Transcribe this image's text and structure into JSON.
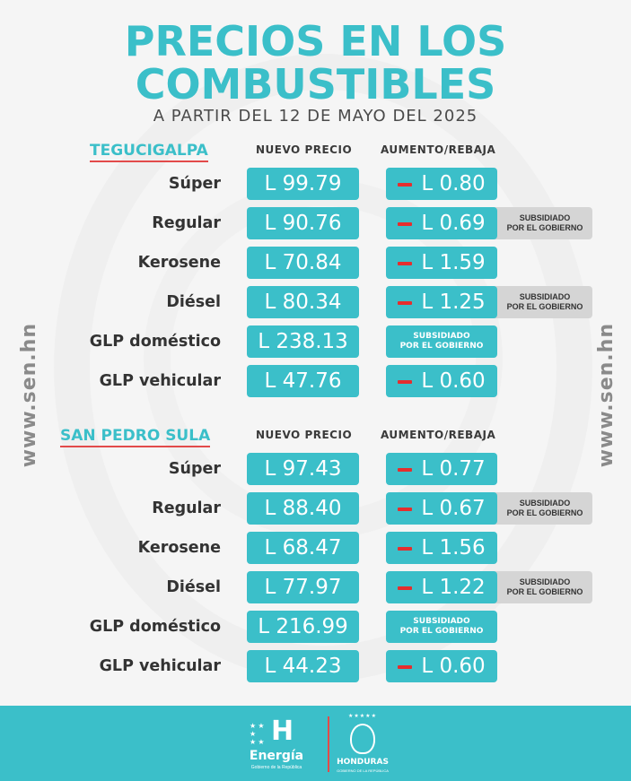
{
  "header": {
    "title_line1": "PRECIOS EN LOS",
    "title_line2": "COMBUSTIBLES",
    "subtitle": "A PARTIR DEL 12 DE MAYO DEL 2025"
  },
  "columns": {
    "price": "NUEVO PRECIO",
    "change": "AUMENTO/REBAJA"
  },
  "side_text": "www.sen.hn",
  "subsidy_label_line1": "SUBSIDIADO",
  "subsidy_label_line2": "POR EL GOBIERNO",
  "colors": {
    "accent": "#3bbfc9",
    "decrease": "#e52e2e",
    "tag_bg": "#d5d5d5"
  },
  "cities": [
    {
      "name": "TEGUCIGALPA",
      "rows": [
        {
          "fuel": "Súper",
          "price": "L 99.79",
          "change": "L 0.80",
          "subsidized": false
        },
        {
          "fuel": "Regular",
          "price": "L 90.76",
          "change": "L 0.69",
          "subsidized": true
        },
        {
          "fuel": "Kerosene",
          "price": "L 70.84",
          "change": "L 1.59",
          "subsidized": false
        },
        {
          "fuel": "Diésel",
          "price": "L 80.34",
          "change": "L 1.25",
          "subsidized": true
        },
        {
          "fuel": "GLP doméstico",
          "price": "L 238.13",
          "change": "",
          "subsidized": false
        },
        {
          "fuel": "GLP vehicular",
          "price": "L 47.76",
          "change": "L 0.60",
          "subsidized": false
        }
      ]
    },
    {
      "name": "SAN PEDRO SULA",
      "rows": [
        {
          "fuel": "Súper",
          "price": "L 97.43",
          "change": "L 0.77",
          "subsidized": false
        },
        {
          "fuel": "Regular",
          "price": "L 88.40",
          "change": "L 0.67",
          "subsidized": true
        },
        {
          "fuel": "Kerosene",
          "price": "L 68.47",
          "change": "L 1.56",
          "subsidized": false
        },
        {
          "fuel": "Diésel",
          "price": "L 77.97",
          "change": "L 1.22",
          "subsidized": true
        },
        {
          "fuel": "GLP doméstico",
          "price": "L 216.99",
          "change": "",
          "subsidized": false
        },
        {
          "fuel": "GLP vehicular",
          "price": "L 44.23",
          "change": "L 0.60",
          "subsidized": false
        }
      ]
    }
  ],
  "footer": {
    "energia_logo": "H",
    "energia_word": "Energía",
    "energia_sub": "Gobierno de la República",
    "honduras_word": "HONDURAS",
    "honduras_sub": "GOBIERNO DE LA REPÚBLICA"
  }
}
